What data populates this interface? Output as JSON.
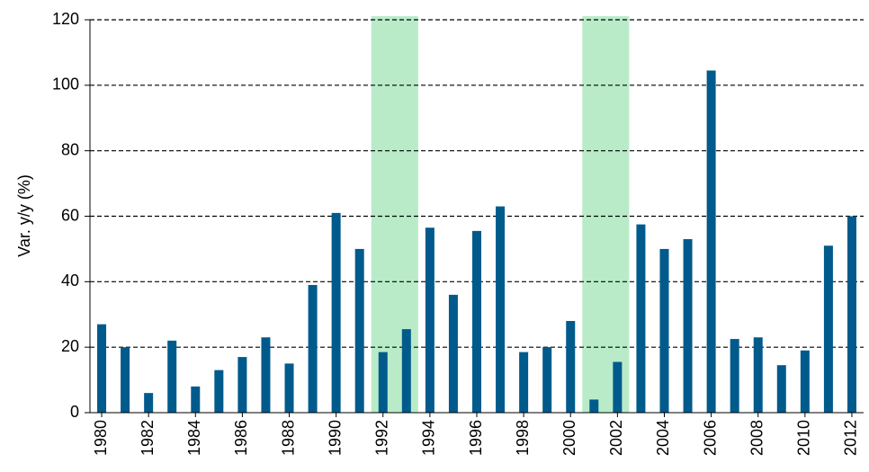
{
  "chart_data": {
    "type": "bar",
    "y_label": "Var. y/y (%)",
    "x": [
      1980,
      1981,
      1982,
      1983,
      1984,
      1985,
      1986,
      1987,
      1988,
      1989,
      1990,
      1991,
      1992,
      1993,
      1994,
      1995,
      1996,
      1997,
      1998,
      1999,
      2000,
      2001,
      2002,
      2003,
      2004,
      2005,
      2006,
      2007,
      2008,
      2009,
      2010,
      2011,
      2012
    ],
    "values": [
      27,
      20,
      6,
      22,
      8,
      13,
      17,
      23,
      15,
      39,
      61,
      50,
      18.5,
      25.5,
      56.5,
      36,
      55.5,
      63,
      18.5,
      20,
      28,
      4,
      15.5,
      57.5,
      50,
      53,
      104.5,
      22.5,
      23,
      14.5,
      19,
      51,
      60
    ],
    "color": "#005a8c",
    "xlim": [
      1979.5,
      2012.5
    ],
    "xticks": [
      1980,
      1982,
      1984,
      1986,
      1988,
      1990,
      1992,
      1994,
      1996,
      1998,
      2000,
      2002,
      2004,
      2006,
      2008,
      2010,
      2012
    ],
    "ylim": [
      0,
      120
    ],
    "yticks": [
      0,
      20,
      40,
      60,
      80,
      100,
      120
    ],
    "grid": true,
    "shaded_spans": [
      [
        1992,
        1993
      ],
      [
        2001,
        2002
      ]
    ],
    "shade_color": "#a8e6bc"
  }
}
